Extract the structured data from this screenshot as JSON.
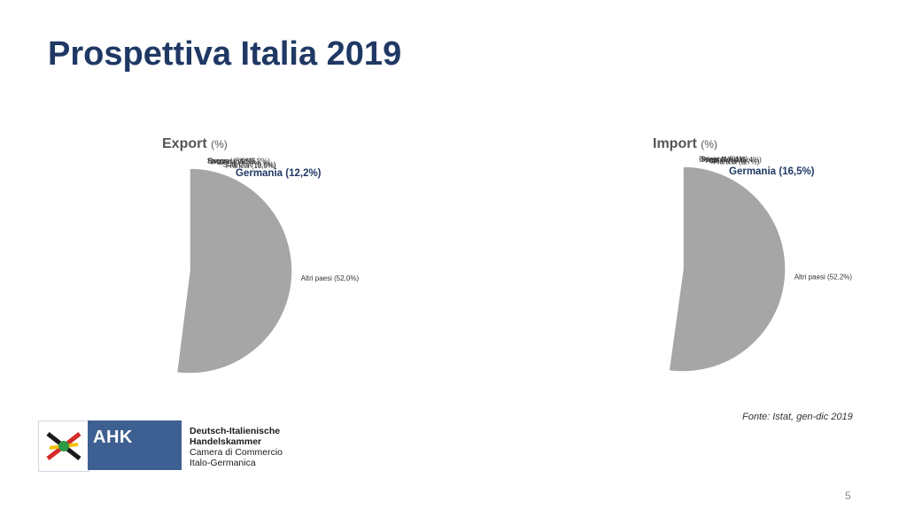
{
  "title": "Prospettiva Italia 2019",
  "source": "Fonte: Istat, gen-dic 2019",
  "page_number": "5",
  "logo": {
    "brand": "AHK",
    "lines": [
      "Deutsch-Italienische",
      "Handelskammer",
      "Camera di Commercio",
      "Italo-Germanica"
    ]
  },
  "colors": {
    "title": "#1f3864",
    "brand_blue": "#3e5f91"
  },
  "chart_data": [
    {
      "type": "pie",
      "title": "Export",
      "unit": "(%)",
      "slices": [
        {
          "label": "Germania (12,2%)",
          "value": 12.2,
          "color": "#e0954a",
          "highlight": true
        },
        {
          "label": "Francia (10,5%)",
          "value": 10.5,
          "color": "#9ab7e0"
        },
        {
          "label": "Stati Uniti (9,6%)",
          "value": 9.6,
          "color": "#3f5e9a"
        },
        {
          "label": "Svizzera (5,5%)",
          "value": 5.5,
          "color": "#2e4c8a"
        },
        {
          "label": "Regno Unito (5,2%)",
          "value": 5.2,
          "color": "#a6b6d6"
        },
        {
          "label": "Spagna (5,0%)",
          "value": 5.0,
          "color": "#1f3563"
        },
        {
          "label": "Altri paesi (52,0%)",
          "value": 52.0,
          "color": "#a6a6a6"
        }
      ]
    },
    {
      "type": "pie",
      "title": "Import",
      "unit": "(%)",
      "slices": [
        {
          "label": "Germania (16,5%)",
          "value": 16.5,
          "color": "#e0954a",
          "highlight": true
        },
        {
          "label": "Francia (8,7%)",
          "value": 8.7,
          "color": "#9ab7e0"
        },
        {
          "label": "Cina (7,5%)",
          "value": 7.5,
          "color": "#6fa8c9"
        },
        {
          "label": "Paesi Bassi (5,4%)",
          "value": 5.4,
          "color": "#d4d9e6"
        },
        {
          "label": "Spagna (5,1%)",
          "value": 5.1,
          "color": "#2c3b57"
        },
        {
          "label": "Belgio (4,6%)",
          "value": 4.6,
          "color": "#bccbe6"
        },
        {
          "label": "Altri paesi (52,2%)",
          "value": 52.2,
          "color": "#a6a6a6"
        }
      ]
    }
  ]
}
